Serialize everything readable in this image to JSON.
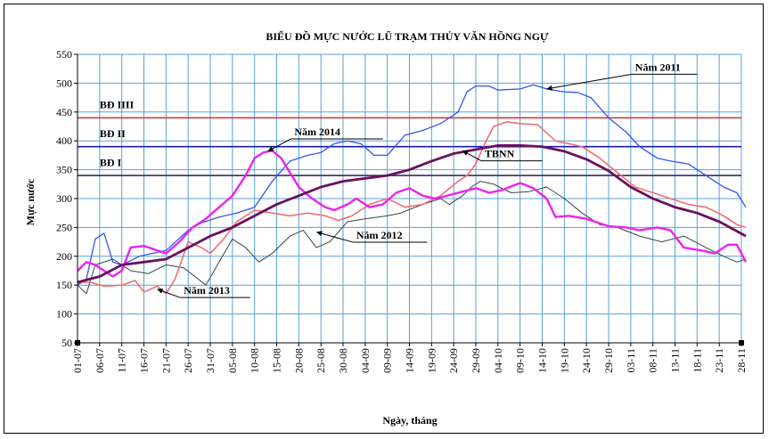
{
  "chart_data": {
    "type": "line",
    "title": "BIỂU ĐỒ MỰC NƯỚC LŨ TRẠM THỦY VĂN HỒNG NGỰ",
    "xlabel": "Ngày, tháng",
    "ylabel": "Mực nước",
    "ylim": [
      50,
      550
    ],
    "yticks": [
      50,
      100,
      150,
      200,
      250,
      300,
      350,
      400,
      450,
      500,
      550
    ],
    "xlim": [
      0,
      150
    ],
    "grid": true,
    "xticks": [
      {
        "x": 0,
        "label": "01-07"
      },
      {
        "x": 5,
        "label": "06-07"
      },
      {
        "x": 10,
        "label": "11-07"
      },
      {
        "x": 15,
        "label": "16-07"
      },
      {
        "x": 20,
        "label": "21-07"
      },
      {
        "x": 25,
        "label": "26-07"
      },
      {
        "x": 30,
        "label": "31-07"
      },
      {
        "x": 35,
        "label": "05-08"
      },
      {
        "x": 40,
        "label": "10-08"
      },
      {
        "x": 45,
        "label": "15-08"
      },
      {
        "x": 50,
        "label": "20-08"
      },
      {
        "x": 55,
        "label": "25-08"
      },
      {
        "x": 60,
        "label": "30-08"
      },
      {
        "x": 65,
        "label": "04-09"
      },
      {
        "x": 70,
        "label": "09-09"
      },
      {
        "x": 75,
        "label": "14-09"
      },
      {
        "x": 80,
        "label": "19-09"
      },
      {
        "x": 85,
        "label": "24-09"
      },
      {
        "x": 90,
        "label": "29-09"
      },
      {
        "x": 95,
        "label": "04-10"
      },
      {
        "x": 100,
        "label": "09-10"
      },
      {
        "x": 105,
        "label": "14-10"
      },
      {
        "x": 110,
        "label": "19-10"
      },
      {
        "x": 115,
        "label": "24-10"
      },
      {
        "x": 120,
        "label": "29-10"
      },
      {
        "x": 125,
        "label": "03-11"
      },
      {
        "x": 130,
        "label": "08-11"
      },
      {
        "x": 135,
        "label": "13-11"
      },
      {
        "x": 140,
        "label": "18-11"
      },
      {
        "x": 145,
        "label": "23-11"
      },
      {
        "x": 150,
        "label": "28-11"
      }
    ],
    "thresholds": [
      {
        "name": "BĐ IIII",
        "value": 440,
        "color": "#d04040"
      },
      {
        "name": "BĐ II",
        "value": 390,
        "color": "#1a1ab8"
      },
      {
        "name": "BĐ I",
        "value": 340,
        "color": "#3a2a6a"
      }
    ],
    "series": [
      {
        "name": "Năm 2011",
        "color": "#3355ee",
        "width": 1.3,
        "points": [
          [
            0,
            150
          ],
          [
            2,
            160
          ],
          [
            4,
            230
          ],
          [
            6,
            240
          ],
          [
            8,
            190
          ],
          [
            10,
            185
          ],
          [
            14,
            200
          ],
          [
            20,
            210
          ],
          [
            25,
            245
          ],
          [
            28,
            258
          ],
          [
            32,
            268
          ],
          [
            36,
            275
          ],
          [
            40,
            285
          ],
          [
            44,
            330
          ],
          [
            48,
            365
          ],
          [
            52,
            375
          ],
          [
            55,
            380
          ],
          [
            58,
            395
          ],
          [
            61,
            400
          ],
          [
            64,
            395
          ],
          [
            67,
            375
          ],
          [
            70,
            375
          ],
          [
            74,
            410
          ],
          [
            78,
            418
          ],
          [
            82,
            430
          ],
          [
            86,
            450
          ],
          [
            88,
            485
          ],
          [
            90,
            495
          ],
          [
            93,
            495
          ],
          [
            95,
            488
          ],
          [
            100,
            490
          ],
          [
            103,
            497
          ],
          [
            106,
            490
          ],
          [
            110,
            485
          ],
          [
            113,
            484
          ],
          [
            116,
            475
          ],
          [
            120,
            440
          ],
          [
            124,
            415
          ],
          [
            127,
            390
          ],
          [
            131,
            370
          ],
          [
            134,
            365
          ],
          [
            138,
            360
          ],
          [
            142,
            340
          ],
          [
            146,
            320
          ],
          [
            149,
            310
          ],
          [
            151,
            285
          ]
        ]
      },
      {
        "name": "Năm 2012",
        "color": "#2e4848",
        "width": 1.0,
        "points": [
          [
            0,
            150
          ],
          [
            2,
            135
          ],
          [
            4,
            185
          ],
          [
            8,
            195
          ],
          [
            12,
            175
          ],
          [
            16,
            170
          ],
          [
            20,
            185
          ],
          [
            24,
            180
          ],
          [
            27,
            162
          ],
          [
            29,
            150
          ],
          [
            32,
            190
          ],
          [
            35,
            230
          ],
          [
            38,
            215
          ],
          [
            41,
            190
          ],
          [
            44,
            205
          ],
          [
            48,
            235
          ],
          [
            51,
            245
          ],
          [
            54,
            215
          ],
          [
            57,
            225
          ],
          [
            61,
            260
          ],
          [
            65,
            265
          ],
          [
            70,
            270
          ],
          [
            73,
            275
          ],
          [
            78,
            290
          ],
          [
            82,
            300
          ],
          [
            84,
            290
          ],
          [
            87,
            305
          ],
          [
            89,
            320
          ],
          [
            91,
            330
          ],
          [
            94,
            325
          ],
          [
            98,
            310
          ],
          [
            102,
            312
          ],
          [
            106,
            320
          ],
          [
            110,
            300
          ],
          [
            114,
            275
          ],
          [
            118,
            255
          ],
          [
            122,
            250
          ],
          [
            127,
            235
          ],
          [
            132,
            225
          ],
          [
            137,
            235
          ],
          [
            142,
            215
          ],
          [
            146,
            200
          ],
          [
            149,
            190
          ],
          [
            151,
            195
          ]
        ]
      },
      {
        "name": "Năm 2013",
        "color": "#f07070",
        "width": 1.6,
        "points": [
          [
            0,
            155
          ],
          [
            3,
            155
          ],
          [
            6,
            148
          ],
          [
            10,
            150
          ],
          [
            13,
            158
          ],
          [
            15,
            138
          ],
          [
            18,
            148
          ],
          [
            20,
            135
          ],
          [
            22,
            160
          ],
          [
            25,
            225
          ],
          [
            28,
            215
          ],
          [
            30,
            205
          ],
          [
            33,
            230
          ],
          [
            36,
            260
          ],
          [
            40,
            280
          ],
          [
            44,
            275
          ],
          [
            48,
            270
          ],
          [
            52,
            275
          ],
          [
            56,
            270
          ],
          [
            59,
            262
          ],
          [
            62,
            270
          ],
          [
            66,
            290
          ],
          [
            70,
            300
          ],
          [
            74,
            285
          ],
          [
            78,
            290
          ],
          [
            82,
            305
          ],
          [
            86,
            330
          ],
          [
            88,
            340
          ],
          [
            90,
            360
          ],
          [
            92,
            395
          ],
          [
            94,
            425
          ],
          [
            97,
            433
          ],
          [
            100,
            430
          ],
          [
            104,
            428
          ],
          [
            108,
            400
          ],
          [
            111,
            395
          ],
          [
            114,
            390
          ],
          [
            118,
            370
          ],
          [
            122,
            345
          ],
          [
            126,
            320
          ],
          [
            130,
            310
          ],
          [
            134,
            300
          ],
          [
            138,
            290
          ],
          [
            142,
            285
          ],
          [
            146,
            270
          ],
          [
            149,
            255
          ],
          [
            151,
            250
          ]
        ]
      },
      {
        "name": "Năm 2014",
        "color": "#ee22ee",
        "width": 2.4,
        "points": [
          [
            0,
            175
          ],
          [
            2,
            190
          ],
          [
            4,
            185
          ],
          [
            6,
            175
          ],
          [
            8,
            165
          ],
          [
            10,
            175
          ],
          [
            12,
            215
          ],
          [
            15,
            218
          ],
          [
            18,
            210
          ],
          [
            20,
            205
          ],
          [
            23,
            225
          ],
          [
            26,
            250
          ],
          [
            29,
            265
          ],
          [
            32,
            285
          ],
          [
            35,
            305
          ],
          [
            38,
            340
          ],
          [
            40,
            370
          ],
          [
            42,
            380
          ],
          [
            44,
            383
          ],
          [
            46,
            370
          ],
          [
            48,
            345
          ],
          [
            50,
            320
          ],
          [
            53,
            300
          ],
          [
            56,
            285
          ],
          [
            58,
            280
          ],
          [
            61,
            290
          ],
          [
            63,
            300
          ],
          [
            66,
            285
          ],
          [
            69,
            290
          ],
          [
            72,
            310
          ],
          [
            75,
            318
          ],
          [
            78,
            305
          ],
          [
            81,
            300
          ],
          [
            84,
            306
          ],
          [
            87,
            312
          ],
          [
            90,
            318
          ],
          [
            93,
            310
          ],
          [
            96,
            315
          ],
          [
            100,
            327
          ],
          [
            103,
            318
          ],
          [
            106,
            300
          ],
          [
            108,
            268
          ],
          [
            111,
            270
          ],
          [
            115,
            265
          ],
          [
            120,
            252
          ],
          [
            124,
            250
          ],
          [
            127,
            245
          ],
          [
            131,
            250
          ],
          [
            134,
            245
          ],
          [
            137,
            215
          ],
          [
            141,
            210
          ],
          [
            144,
            205
          ],
          [
            147,
            220
          ],
          [
            149,
            220
          ],
          [
            151,
            190
          ]
        ]
      },
      {
        "name": "TBNN",
        "color": "#6a1060",
        "width": 2.8,
        "points": [
          [
            0,
            155
          ],
          [
            5,
            165
          ],
          [
            10,
            185
          ],
          [
            15,
            190
          ],
          [
            20,
            195
          ],
          [
            25,
            215
          ],
          [
            30,
            235
          ],
          [
            35,
            250
          ],
          [
            40,
            270
          ],
          [
            45,
            290
          ],
          [
            50,
            305
          ],
          [
            55,
            320
          ],
          [
            60,
            330
          ],
          [
            65,
            335
          ],
          [
            70,
            340
          ],
          [
            75,
            350
          ],
          [
            80,
            365
          ],
          [
            85,
            378
          ],
          [
            90,
            385
          ],
          [
            95,
            392
          ],
          [
            100,
            392
          ],
          [
            105,
            390
          ],
          [
            110,
            382
          ],
          [
            115,
            368
          ],
          [
            120,
            348
          ],
          [
            125,
            320
          ],
          [
            130,
            300
          ],
          [
            135,
            285
          ],
          [
            140,
            275
          ],
          [
            145,
            260
          ],
          [
            151,
            235
          ]
        ]
      }
    ],
    "annotations": [
      {
        "text": "Năm 2011",
        "x": 126,
        "y": 517,
        "pointTo": [
          106,
          490
        ],
        "underline": [
          140,
          517
        ]
      },
      {
        "text": "Năm 2014",
        "x": 49,
        "y": 405,
        "pointTo": [
          43,
          382
        ],
        "underline": [
          69,
          405
        ]
      },
      {
        "text": "TBNN",
        "x": 92,
        "y": 367,
        "pointTo": [
          87,
          383
        ],
        "underline": [
          105,
          367
        ]
      },
      {
        "text": "Năm 2012",
        "x": 63,
        "y": 226,
        "pointTo": [
          54,
          242
        ],
        "underline": [
          79,
          226
        ]
      },
      {
        "text": "Năm 2013",
        "x": 24,
        "y": 130,
        "pointTo": [
          18,
          143
        ],
        "underline": [
          39,
          130
        ]
      },
      {
        "text": "BĐ IIII",
        "x": 5,
        "y": 452,
        "pointTo": null,
        "underline": null
      },
      {
        "text": "BĐ II",
        "x": 5,
        "y": 402,
        "pointTo": null,
        "underline": null
      },
      {
        "text": "BĐ I",
        "x": 5,
        "y": 352,
        "pointTo": null,
        "underline": null
      }
    ]
  }
}
